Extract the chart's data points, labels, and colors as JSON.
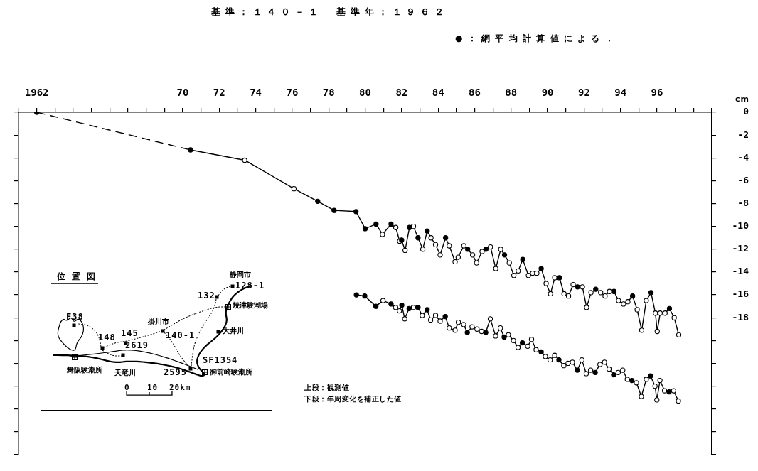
{
  "chart_data": {
    "type": "line",
    "title": "基準：１４０－１　基準年：１９６２",
    "ylabel": "cm",
    "annotations": [
      "●：網平均計算値による．",
      "上段：観測値",
      "下段：年周変化を補正した値",
      "位置図",
      "F38",
      "148",
      "145",
      "2619",
      "掛川市",
      "140-1",
      "132",
      "静岡市",
      "128-1",
      "焼津験潮場",
      "大井川",
      "SF1354",
      "2595",
      "御前崎験潮所",
      "舞阪験潮所",
      "天竜川",
      "0",
      "10",
      "20km"
    ],
    "xlim": [
      1961,
      1999
    ],
    "xticks": [
      {
        "value": 1961,
        "label": null
      },
      1962,
      {
        "value": 1963,
        "label": null
      },
      {
        "value": 1964,
        "label": null
      },
      {
        "value": 1965,
        "label": null
      },
      {
        "value": 1966,
        "label": null
      },
      {
        "value": 1967,
        "label": null
      },
      {
        "value": 1968,
        "label": null
      },
      {
        "value": 1969,
        "label": null
      },
      {
        "value": 1970,
        "label": "70"
      },
      {
        "value": 1971,
        "label": null
      },
      {
        "value": 1972,
        "label": "72"
      },
      {
        "value": 1973,
        "label": null
      },
      {
        "value": 1974,
        "label": "74"
      },
      {
        "value": 1975,
        "label": null
      },
      {
        "value": 1976,
        "label": "76"
      },
      {
        "value": 1977,
        "label": null
      },
      {
        "value": 1978,
        "label": "78"
      },
      {
        "value": 1979,
        "label": null
      },
      {
        "value": 1980,
        "label": "80"
      },
      {
        "value": 1981,
        "label": null
      },
      {
        "value": 1982,
        "label": "82"
      },
      {
        "value": 1983,
        "label": null
      },
      {
        "value": 1984,
        "label": "84"
      },
      {
        "value": 1985,
        "label": null
      },
      {
        "value": 1986,
        "label": "86"
      },
      {
        "value": 1987,
        "label": null
      },
      {
        "value": 1988,
        "label": "88"
      },
      {
        "value": 1989,
        "label": null
      },
      {
        "value": 1990,
        "label": "90"
      },
      {
        "value": 1991,
        "label": null
      },
      {
        "value": 1992,
        "label": "92"
      },
      {
        "value": 1993,
        "label": null
      },
      {
        "value": 1994,
        "label": "94"
      },
      {
        "value": 1995,
        "label": null
      },
      {
        "value": 1996,
        "label": "96"
      },
      {
        "value": 1997,
        "label": null
      },
      {
        "value": 1998,
        "label": null
      },
      {
        "value": 1999,
        "label": null
      }
    ],
    "ylim": [
      -30,
      0
    ],
    "yticks": [
      0,
      -2,
      -4,
      -6,
      -8,
      -10,
      -12,
      -14,
      -16,
      -18,
      {
        "value": -20,
        "label": null
      },
      {
        "value": -22,
        "label": null
      },
      {
        "value": -24,
        "label": null
      },
      {
        "value": -26,
        "label": null
      },
      {
        "value": -28,
        "label": null
      },
      {
        "value": -30,
        "label": null
      }
    ],
    "marker": "circle",
    "series": [
      {
        "line_style": "dashed",
        "color": "#000000",
        "x": [
          1962,
          1970.43
        ],
        "values": [
          0,
          -3.3
        ],
        "colors": [
          "#000000",
          null
        ]
      },
      {
        "line_style": "solid",
        "color": "#000000",
        "x": [
          1970.43,
          1973.4,
          1976.1,
          1977.4,
          1978.3,
          1979.5,
          1980.0,
          1980.6,
          1980.95,
          1981.42,
          1981.68,
          1981.89,
          1982.0,
          1982.19,
          1982.43,
          1982.65,
          1982.9,
          1983.16,
          1983.4,
          1983.61,
          1983.86,
          1984.11,
          1984.41,
          1984.61,
          1984.93,
          1985.1,
          1985.41,
          1985.62,
          1985.89,
          1986.11,
          1986.41,
          1986.62,
          1986.87,
          1987.16,
          1987.43,
          1987.64,
          1987.9,
          1988.15,
          1988.39,
          1988.64,
          1988.95,
          1989.18,
          1989.41,
          1989.65,
          1989.92,
          1990.16,
          1990.39,
          1990.65,
          1990.9,
          1991.15,
          1991.4,
          1991.64,
          1991.91,
          1992.14,
          1992.38,
          1992.64,
          1992.91,
          1993.15,
          1993.39,
          1993.64,
          1993.89,
          1994.16,
          1994.4,
          1994.66,
          1994.91,
          1995.16,
          1995.41,
          1995.67,
          1995.91,
          1996.01,
          1996.17,
          1996.44,
          1996.68,
          1996.94,
          1997.19
        ],
        "values": [
          -3.3,
          -4.2,
          -6.7,
          -7.8,
          -8.6,
          -8.7,
          -10.2,
          -9.8,
          -10.7,
          -9.8,
          -10.1,
          -11.3,
          -11.2,
          -12.1,
          -10.1,
          -10.0,
          -11.0,
          -12.0,
          -10.4,
          -11.0,
          -11.6,
          -12.5,
          -11.0,
          -11.7,
          -13.1,
          -12.7,
          -11.7,
          -12.0,
          -12.5,
          -13.2,
          -12.2,
          -12.0,
          -11.8,
          -13.7,
          -12.0,
          -12.5,
          -13.2,
          -14.3,
          -13.9,
          -12.9,
          -14.3,
          -14.1,
          -14.1,
          -13.7,
          -15.0,
          -15.9,
          -14.5,
          -14.5,
          -15.9,
          -16.1,
          -15.1,
          -15.3,
          -15.3,
          -17.1,
          -15.8,
          -15.5,
          -15.8,
          -16.1,
          -15.7,
          -15.7,
          -16.5,
          -16.8,
          -16.6,
          -16.1,
          -17.3,
          -19.1,
          -16.5,
          -15.8,
          -17.6,
          -19.2,
          -17.6,
          -17.6,
          -17.2,
          -18.0,
          -19.5
        ],
        "colors": [
          "#000000",
          "#ffffff",
          "#ffffff",
          "#000000",
          "#000000",
          "#000000",
          "#000000",
          "#000000",
          "#ffffff",
          "#000000",
          "#ffffff",
          "#ffffff",
          "#000000",
          "#ffffff",
          "#000000",
          "#ffffff",
          "#000000",
          "#ffffff",
          "#000000",
          "#ffffff",
          "#ffffff",
          "#ffffff",
          "#000000",
          "#ffffff",
          "#ffffff",
          "#ffffff",
          "#ffffff",
          "#000000",
          "#ffffff",
          "#ffffff",
          "#ffffff",
          "#000000",
          "#ffffff",
          "#ffffff",
          "#ffffff",
          "#000000",
          "#ffffff",
          "#ffffff",
          "#ffffff",
          "#000000",
          "#ffffff",
          "#ffffff",
          "#ffffff",
          "#000000",
          "#ffffff",
          "#ffffff",
          "#ffffff",
          "#000000",
          "#ffffff",
          "#ffffff",
          "#ffffff",
          "#000000",
          "#ffffff",
          "#ffffff",
          "#ffffff",
          "#000000",
          "#ffffff",
          "#ffffff",
          "#ffffff",
          "#000000",
          "#ffffff",
          "#ffffff",
          "#ffffff",
          "#000000",
          "#ffffff",
          "#ffffff",
          "#ffffff",
          "#000000",
          "#ffffff",
          "#ffffff",
          "#ffffff",
          "#ffffff",
          "#000000",
          "#ffffff",
          "#ffffff"
        ]
      },
      {
        "line_style": "solid",
        "color": "#000000",
        "x": [
          1979.52,
          1979.98,
          1980.59,
          1980.98,
          1981.42,
          1981.67,
          1981.88,
          1982.01,
          1982.17,
          1982.41,
          1982.65,
          1982.9,
          1983.13,
          1983.4,
          1983.59,
          1983.86,
          1984.11,
          1984.39,
          1984.61,
          1984.93,
          1985.11,
          1985.4,
          1985.6,
          1985.86,
          1986.13,
          1986.38,
          1986.61,
          1986.86,
          1987.15,
          1987.41,
          1987.62,
          1987.85,
          1988.13,
          1988.38,
          1988.62,
          1988.91,
          1989.12,
          1989.37,
          1989.65,
          1989.88,
          1990.14,
          1990.39,
          1990.62,
          1990.89,
          1991.12,
          1991.36,
          1991.63,
          1991.88,
          1992.12,
          1992.36,
          1992.61,
          1992.87,
          1993.12,
          1993.37,
          1993.62,
          1993.87,
          1994.12,
          1994.37,
          1994.62,
          1994.87,
          1995.14,
          1995.41,
          1995.64,
          1995.89,
          1995.99,
          1996.16,
          1996.41,
          1996.66,
          1996.91,
          1997.17
        ],
        "values": [
          -16.0,
          -16.1,
          -17.0,
          -16.5,
          -16.8,
          -17.1,
          -17.4,
          -16.9,
          -18.1,
          -17.2,
          -17.1,
          -17.1,
          -17.8,
          -17.3,
          -18.2,
          -17.8,
          -18.3,
          -17.9,
          -18.9,
          -19.1,
          -18.4,
          -18.6,
          -19.3,
          -18.8,
          -19.0,
          -19.2,
          -19.3,
          -18.1,
          -19.6,
          -18.9,
          -19.7,
          -19.5,
          -20.0,
          -20.6,
          -20.2,
          -20.5,
          -19.9,
          -20.8,
          -21.0,
          -21.4,
          -21.7,
          -21.3,
          -21.7,
          -22.2,
          -22.0,
          -21.9,
          -22.6,
          -21.7,
          -22.9,
          -22.6,
          -22.8,
          -22.1,
          -21.9,
          -22.5,
          -23.0,
          -22.8,
          -22.6,
          -23.4,
          -23.5,
          -23.7,
          -24.9,
          -23.4,
          -23.1,
          -24.0,
          -25.2,
          -23.5,
          -24.4,
          -24.5,
          -24.4,
          -25.3
        ],
        "colors": [
          "#000000",
          "#000000",
          "#000000",
          "#ffffff",
          "#000000",
          "#ffffff",
          "#ffffff",
          "#000000",
          "#ffffff",
          "#000000",
          "#ffffff",
          "#000000",
          "#ffffff",
          "#000000",
          "#ffffff",
          "#ffffff",
          "#ffffff",
          "#000000",
          "#ffffff",
          "#ffffff",
          "#ffffff",
          "#ffffff",
          "#000000",
          "#ffffff",
          "#ffffff",
          "#ffffff",
          "#000000",
          "#ffffff",
          "#ffffff",
          "#ffffff",
          "#000000",
          "#ffffff",
          "#ffffff",
          "#ffffff",
          "#000000",
          "#ffffff",
          "#ffffff",
          "#ffffff",
          "#000000",
          "#ffffff",
          "#ffffff",
          "#ffffff",
          "#000000",
          "#ffffff",
          "#ffffff",
          "#ffffff",
          "#000000",
          "#ffffff",
          "#ffffff",
          "#ffffff",
          "#000000",
          "#ffffff",
          "#ffffff",
          "#ffffff",
          "#000000",
          "#ffffff",
          "#ffffff",
          "#ffffff",
          "#000000",
          "#ffffff",
          "#ffffff",
          "#ffffff",
          "#000000",
          "#ffffff",
          "#ffffff",
          "#ffffff",
          "#ffffff",
          "#000000",
          "#ffffff",
          "#ffffff"
        ]
      }
    ]
  }
}
